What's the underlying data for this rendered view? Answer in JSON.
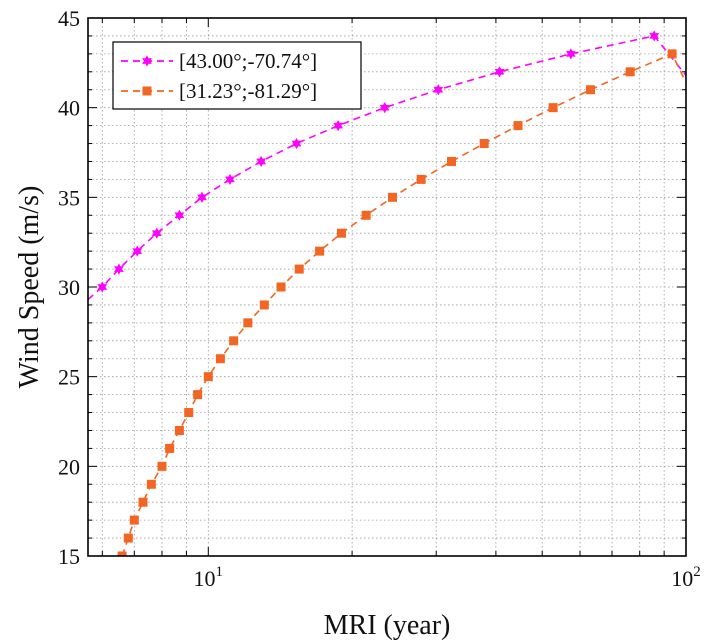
{
  "chart_data": {
    "type": "line",
    "xlabel": "MRI (year)",
    "ylabel": "Wind Speed (m/s)",
    "xscale": "log",
    "xlim": [
      5.6,
      100
    ],
    "ylim": [
      15,
      45
    ],
    "y_ticks": [
      "15",
      "20",
      "25",
      "30",
      "35",
      "40",
      "45"
    ],
    "x_ticks": [
      {
        "value": 10,
        "base": "10",
        "exp": "1"
      },
      {
        "value": 100,
        "base": "10",
        "exp": "2"
      }
    ],
    "grid": true,
    "legend_position": "top-left",
    "series": [
      {
        "name": "[43.00°;-70.74°]",
        "color": "#ff00ff",
        "marker": "star",
        "line_style": "dashed",
        "x": [
          6.0,
          6.5,
          7.1,
          7.8,
          8.7,
          9.7,
          11.1,
          12.9,
          15.3,
          18.7,
          23.4,
          30.3,
          40.7,
          57.4,
          85.8
        ],
        "y": [
          30,
          31,
          32,
          33,
          34,
          35,
          36,
          37,
          38,
          39,
          40,
          41,
          42,
          43,
          44
        ],
        "line_x": [
          5.6,
          6.0,
          6.5,
          7.1,
          7.8,
          8.7,
          9.7,
          11.1,
          12.9,
          15.3,
          18.7,
          23.4,
          30.3,
          40.7,
          57.4,
          85.8,
          100
        ],
        "line_y": [
          29.3,
          30,
          31,
          32,
          33,
          34,
          35,
          36,
          37,
          38,
          39,
          40,
          41,
          42,
          43,
          44,
          41.8
        ]
      },
      {
        "name": "[31.23°;-81.29°]",
        "color": "#f26522",
        "marker": "square",
        "line_style": "dashed",
        "x": [
          6.6,
          6.8,
          7.0,
          7.3,
          7.6,
          8.0,
          8.3,
          8.7,
          9.1,
          9.5,
          10.0,
          10.6,
          11.3,
          12.1,
          13.1,
          14.2,
          15.5,
          17.1,
          19.0,
          21.4,
          24.3,
          27.9,
          32.3,
          37.8,
          44.5,
          52.7,
          63.1,
          76.4,
          93.5
        ],
        "y": [
          15,
          16,
          17,
          18,
          19,
          20,
          21,
          22,
          23,
          24,
          25,
          26,
          27,
          28,
          29,
          30,
          31,
          32,
          33,
          34,
          35,
          36,
          37,
          38,
          39,
          40,
          41,
          42,
          43
        ],
        "line_x": [
          6.6,
          6.8,
          7.0,
          7.3,
          7.6,
          8.0,
          8.3,
          8.7,
          9.1,
          9.5,
          10.0,
          10.6,
          11.3,
          12.1,
          13.1,
          14.2,
          15.5,
          17.1,
          19.0,
          21.4,
          24.3,
          27.9,
          32.3,
          37.8,
          44.5,
          52.7,
          63.1,
          76.4,
          93.5,
          100
        ],
        "line_y": [
          15,
          16,
          17,
          18,
          19,
          20,
          21,
          22,
          23,
          24,
          25,
          26,
          27,
          28,
          29,
          30,
          31,
          32,
          33,
          34,
          35,
          36,
          37,
          38,
          39,
          40,
          41,
          42,
          43,
          41.4
        ]
      }
    ]
  }
}
